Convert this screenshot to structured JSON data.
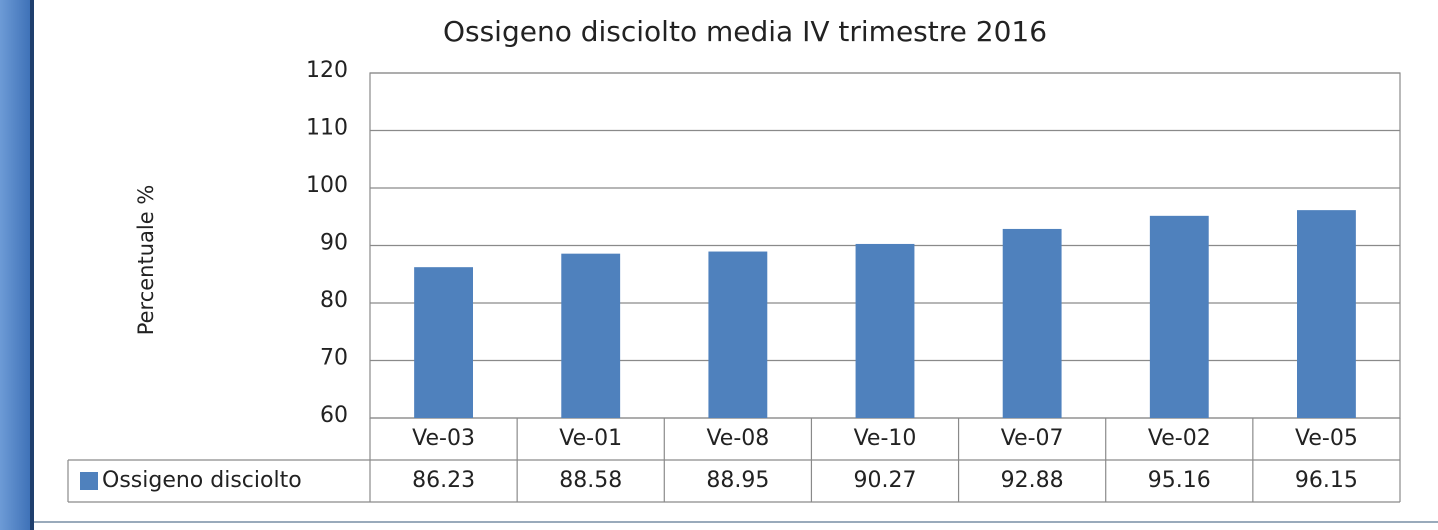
{
  "chart_data": {
    "type": "bar",
    "title": "Ossigeno disciolto media IV trimestre 2016",
    "y_label": "Percentuale %",
    "categories": [
      "Ve-03",
      "Ve-01",
      "Ve-08",
      "Ve-10",
      "Ve-07",
      "Ve-02",
      "Ve-05"
    ],
    "series": [
      {
        "name": "Ossigeno disciolto",
        "color": "#4f81bd",
        "values": [
          86.23,
          88.58,
          88.95,
          90.27,
          92.88,
          95.16,
          96.15
        ]
      }
    ],
    "ylim": [
      60,
      120
    ],
    "yticks": [
      60,
      70,
      80,
      90,
      100,
      110,
      120
    ],
    "grid": true,
    "data_table": true
  }
}
